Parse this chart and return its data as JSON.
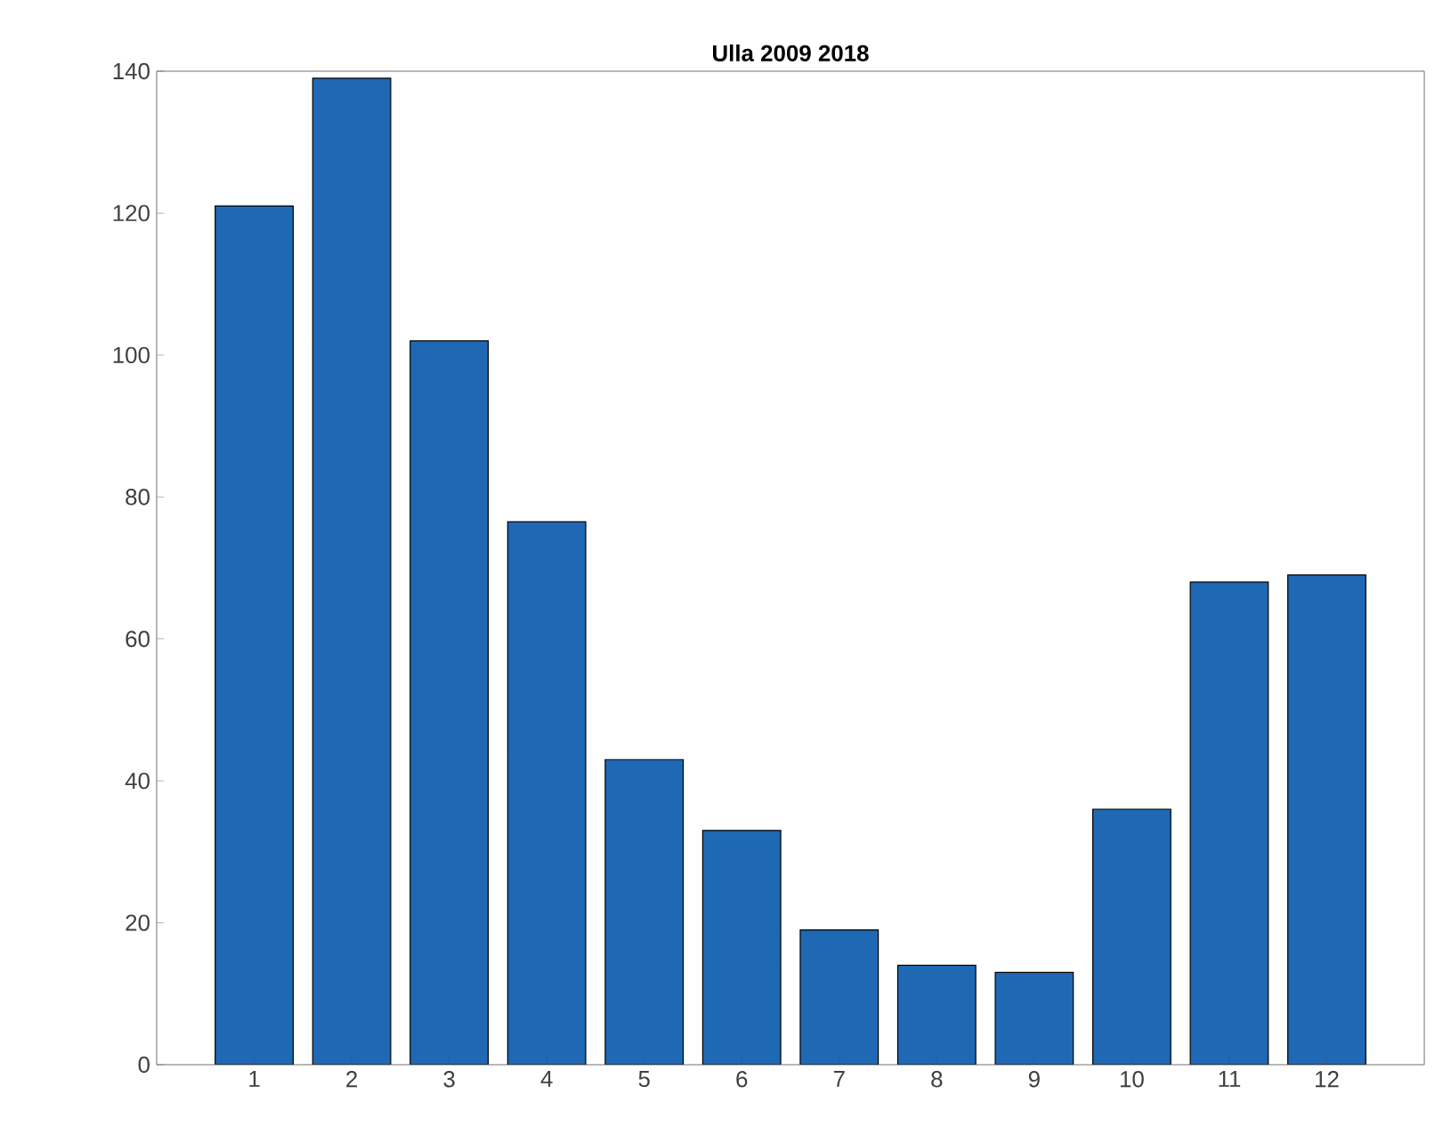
{
  "chart_data": {
    "type": "bar",
    "title": "Ulla 2009 2018",
    "categories": [
      "1",
      "2",
      "3",
      "4",
      "5",
      "6",
      "7",
      "8",
      "9",
      "10",
      "11",
      "12"
    ],
    "values": [
      121,
      139,
      102,
      76.5,
      43,
      33,
      19,
      14,
      13,
      36,
      68,
      69
    ],
    "color": "#1f68b4",
    "ylim": [
      0,
      140
    ],
    "yticks": [
      0,
      20,
      40,
      60,
      80,
      100,
      120,
      140
    ]
  }
}
